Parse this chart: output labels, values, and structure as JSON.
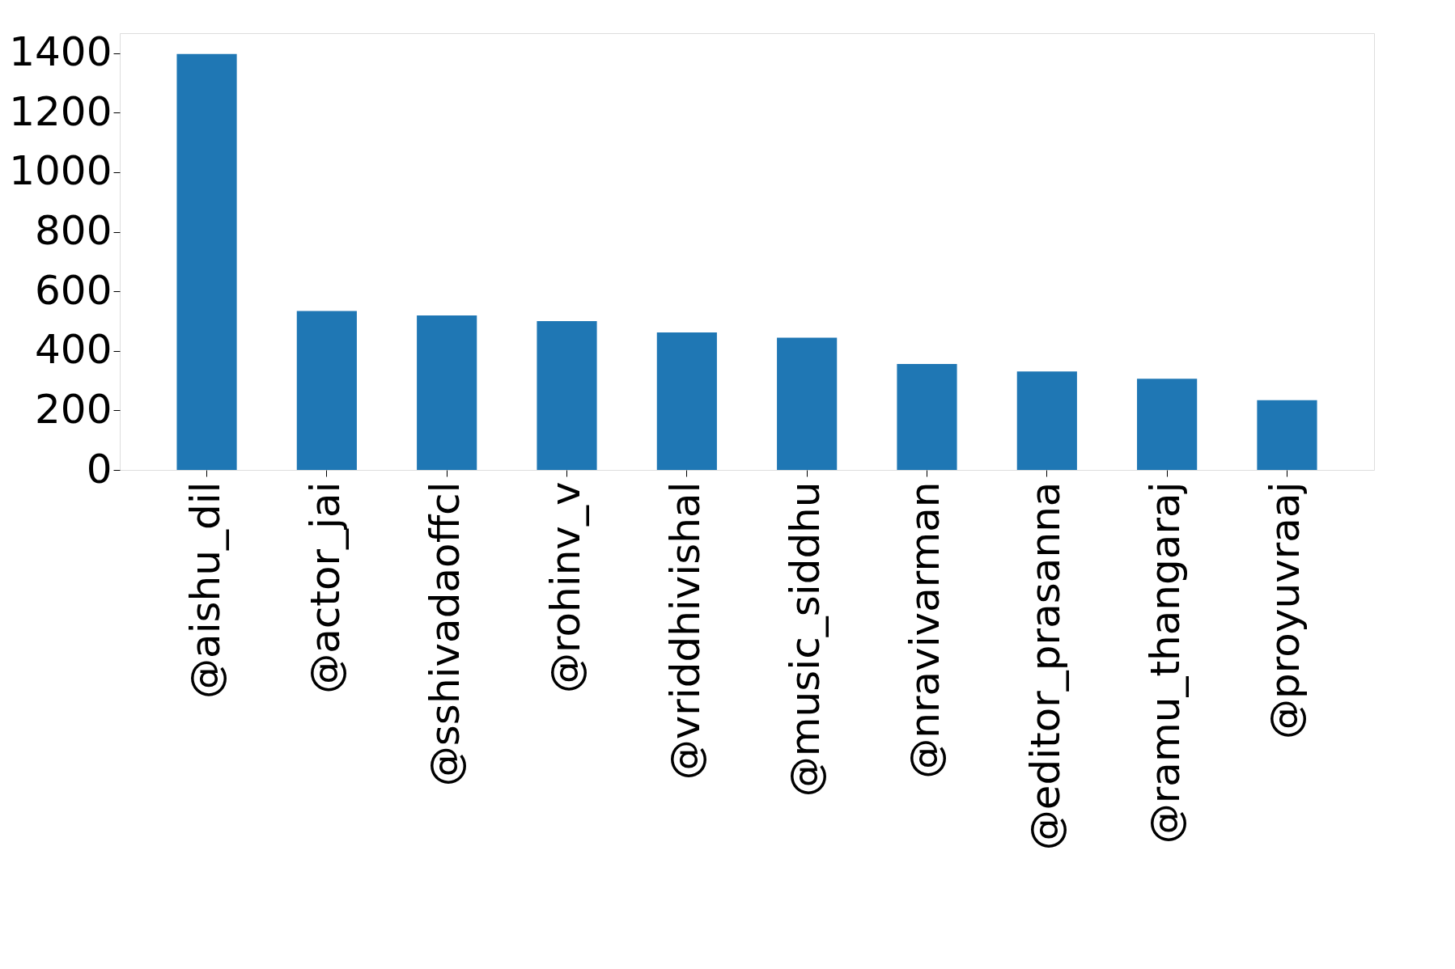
{
  "chart_data": {
    "type": "bar",
    "categories": [
      "@aishu_dil",
      "@actor_jai",
      "@sshivadaoffcl",
      "@rohinv_v",
      "@vriddhivishal",
      "@music_siddhu",
      "@nravivarman",
      "@editor_prasanna",
      "@ramu_thangaraj",
      "@proyuvraaj"
    ],
    "values": [
      1397,
      534,
      519,
      500,
      462,
      444,
      356,
      331,
      306,
      234
    ],
    "color": "#1f77b4",
    "ylim": [
      0,
      1467
    ],
    "yticks": [
      0,
      200,
      400,
      600,
      800,
      1000,
      1200,
      1400
    ],
    "grid": false
  }
}
